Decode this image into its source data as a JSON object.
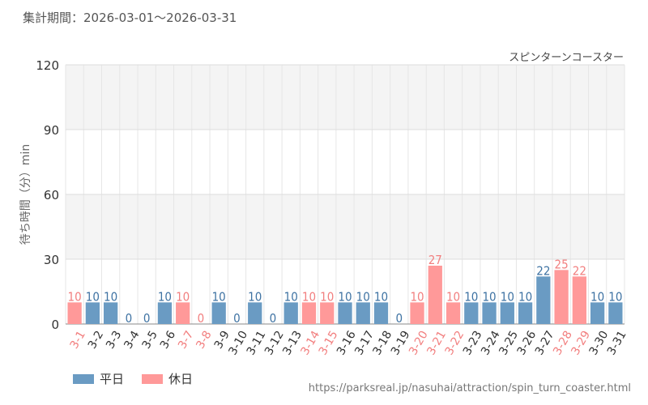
{
  "header": {
    "period": "集計期間：2026-03-01〜2026-03-31"
  },
  "colors": {
    "weekday": "#6a9bc3",
    "holiday": "#ff9999",
    "weekday_label": "#3f73a3",
    "holiday_label": "#f27f7f"
  },
  "legend": {
    "weekday": "平日",
    "holiday": "休日"
  },
  "footer": {
    "url": "https://parksreal.jp/nasuhai/attraction/spin_turn_coaster.html"
  },
  "chart_data": {
    "type": "bar",
    "title": "スピンターンコースター",
    "ylabel": "待ち時間（分）min",
    "xlabel": "",
    "ylim": [
      0,
      120
    ],
    "yticks": [
      0,
      30,
      60,
      90,
      120
    ],
    "grid": true,
    "legend_position": "bottom-left",
    "categories": [
      "3-1",
      "3-2",
      "3-3",
      "3-4",
      "3-5",
      "3-6",
      "3-7",
      "3-8",
      "3-9",
      "3-10",
      "3-11",
      "3-12",
      "3-13",
      "3-14",
      "3-15",
      "3-16",
      "3-17",
      "3-18",
      "3-19",
      "3-20",
      "3-21",
      "3-22",
      "3-23",
      "3-24",
      "3-25",
      "3-26",
      "3-27",
      "3-28",
      "3-29",
      "3-30",
      "3-31"
    ],
    "values": [
      10,
      10,
      10,
      0,
      0,
      10,
      10,
      0,
      10,
      0,
      10,
      0,
      10,
      10,
      10,
      10,
      10,
      10,
      0,
      10,
      27,
      10,
      10,
      10,
      10,
      10,
      22,
      25,
      22,
      10,
      10
    ],
    "holiday": [
      true,
      false,
      false,
      false,
      false,
      false,
      true,
      true,
      false,
      false,
      false,
      false,
      false,
      true,
      true,
      false,
      false,
      false,
      false,
      true,
      true,
      true,
      false,
      false,
      false,
      false,
      false,
      true,
      true,
      false,
      false
    ]
  }
}
